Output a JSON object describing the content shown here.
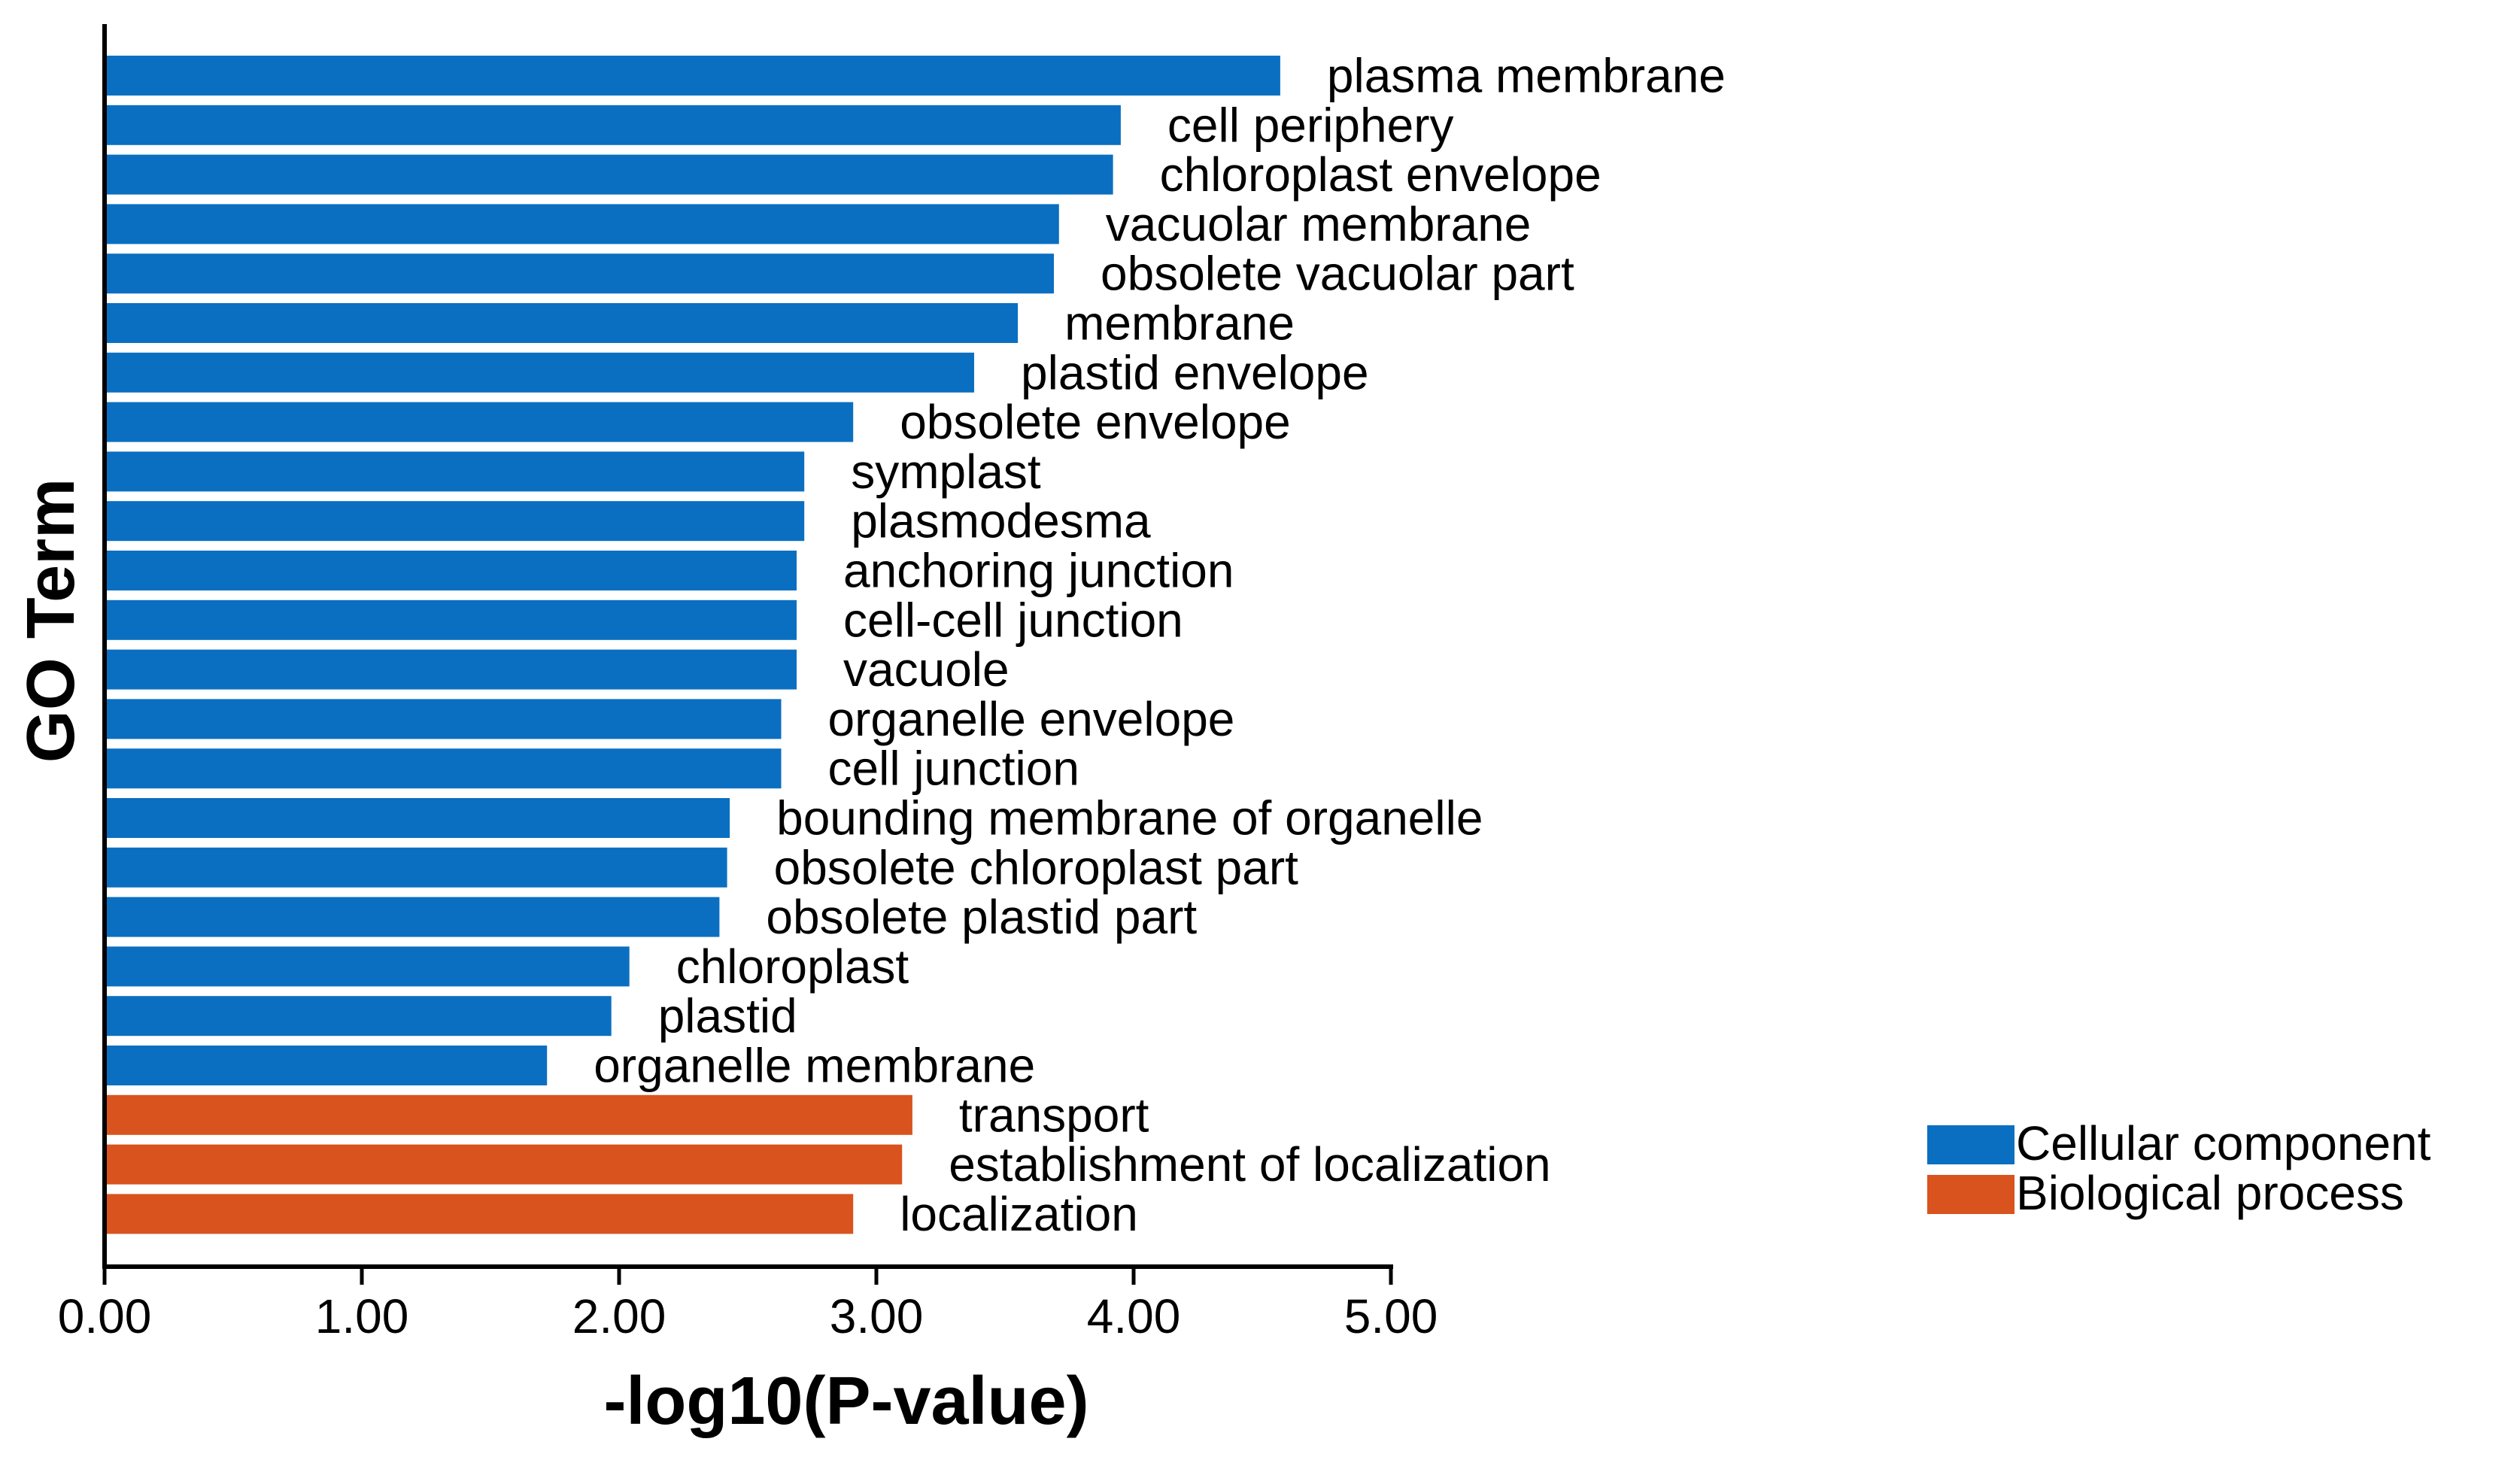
{
  "chart_data": {
    "type": "bar",
    "orientation": "horizontal",
    "title": "",
    "xlabel": "-log10(P-value)",
    "ylabel": "GO Term",
    "xlim": [
      0,
      5
    ],
    "xticks": [
      "0.00",
      "1.00",
      "2.00",
      "3.00",
      "4.00",
      "5.00"
    ],
    "grid": false,
    "legend_position": "right",
    "series": [
      {
        "name": "Cellular component",
        "color": "#0b6fc1"
      },
      {
        "name": "Biological process",
        "color": "#d9531e"
      }
    ],
    "bars": [
      {
        "label": "plasma membrane",
        "value": 4.57,
        "series": "Cellular component"
      },
      {
        "label": "cell periphery",
        "value": 3.95,
        "series": "Cellular component"
      },
      {
        "label": "chloroplast envelope",
        "value": 3.92,
        "series": "Cellular component"
      },
      {
        "label": "vacuolar membrane",
        "value": 3.71,
        "series": "Cellular component"
      },
      {
        "label": "obsolete vacuolar part",
        "value": 3.69,
        "series": "Cellular component"
      },
      {
        "label": "membrane",
        "value": 3.55,
        "series": "Cellular component"
      },
      {
        "label": "plastid envelope",
        "value": 3.38,
        "series": "Cellular component"
      },
      {
        "label": "obsolete envelope",
        "value": 2.91,
        "series": "Cellular component"
      },
      {
        "label": "symplast",
        "value": 2.72,
        "series": "Cellular component"
      },
      {
        "label": "plasmodesma",
        "value": 2.72,
        "series": "Cellular component"
      },
      {
        "label": "anchoring junction",
        "value": 2.69,
        "series": "Cellular component"
      },
      {
        "label": "cell-cell junction",
        "value": 2.69,
        "series": "Cellular component"
      },
      {
        "label": "vacuole",
        "value": 2.69,
        "series": "Cellular component"
      },
      {
        "label": "organelle envelope",
        "value": 2.63,
        "series": "Cellular component"
      },
      {
        "label": "cell junction",
        "value": 2.63,
        "series": "Cellular component"
      },
      {
        "label": "bounding membrane of organelle",
        "value": 2.43,
        "series": "Cellular component"
      },
      {
        "label": "obsolete chloroplast part",
        "value": 2.42,
        "series": "Cellular component"
      },
      {
        "label": "obsolete plastid part",
        "value": 2.39,
        "series": "Cellular component"
      },
      {
        "label": "chloroplast",
        "value": 2.04,
        "series": "Cellular component"
      },
      {
        "label": "plastid",
        "value": 1.97,
        "series": "Cellular component"
      },
      {
        "label": "organelle membrane",
        "value": 1.72,
        "series": "Cellular component"
      },
      {
        "label": "transport",
        "value": 3.14,
        "series": "Biological process"
      },
      {
        "label": "establishment of localization",
        "value": 3.1,
        "series": "Biological process"
      },
      {
        "label": "localization",
        "value": 2.91,
        "series": "Biological process"
      }
    ]
  }
}
